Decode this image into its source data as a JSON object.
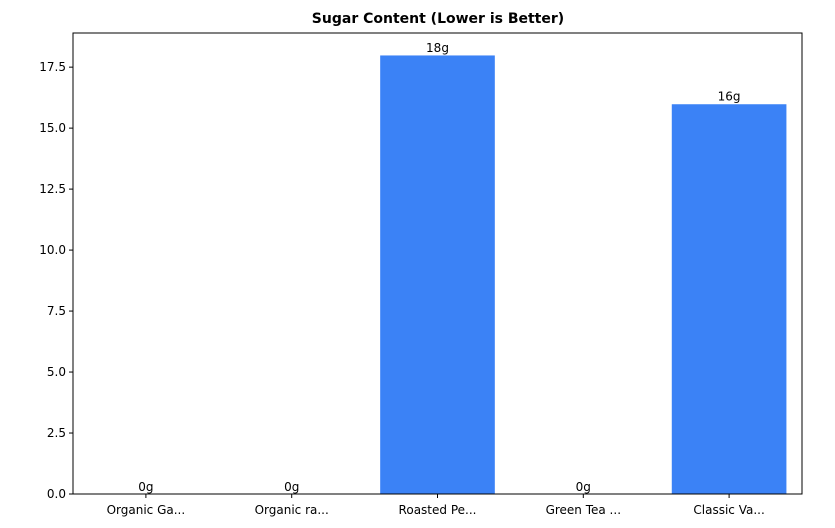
{
  "chart_data": {
    "type": "bar",
    "title": "Sugar Content (Lower is Better)",
    "xlabel": "",
    "ylabel": "",
    "categories": [
      "Organic Ga...",
      "Organic ra...",
      "Roasted Pe...",
      "Green Tea ...",
      "Classic Va..."
    ],
    "values": [
      0,
      0,
      18,
      0,
      16
    ],
    "value_labels": [
      "0g",
      "0g",
      "18g",
      "0g",
      "16g"
    ],
    "ylim": [
      0,
      18.9
    ],
    "yticks": [
      0,
      2.5,
      5,
      7.5,
      10,
      12.5,
      15,
      17.5
    ],
    "ytick_labels": [
      "0.0",
      "2.5",
      "5.0",
      "7.5",
      "10.0",
      "12.5",
      "15.0",
      "17.5"
    ],
    "grid": false,
    "legend": "none",
    "colors": {
      "bar": "#3b82f6",
      "bar_edge": "#ffffff",
      "axis": "#000000",
      "background": "#ffffff"
    }
  }
}
